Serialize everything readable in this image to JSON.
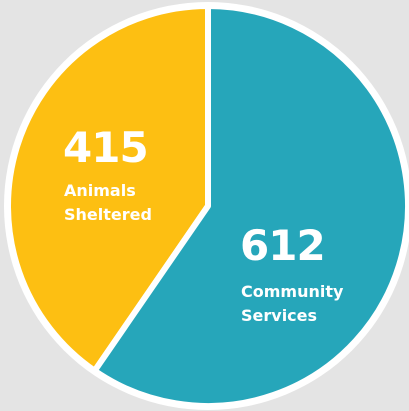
{
  "chart_data": {
    "type": "pie",
    "slices": [
      {
        "value": 415,
        "value_text": "415",
        "label_lines": [
          "Animals",
          "Sheltered"
        ],
        "color": "#FDBF12"
      },
      {
        "value": 612,
        "value_text": "612",
        "label_lines": [
          "Community",
          "Services"
        ],
        "color": "#26A6BA"
      }
    ],
    "background_color": "#E4E4E4",
    "separator_color": "#FFFFFF"
  }
}
